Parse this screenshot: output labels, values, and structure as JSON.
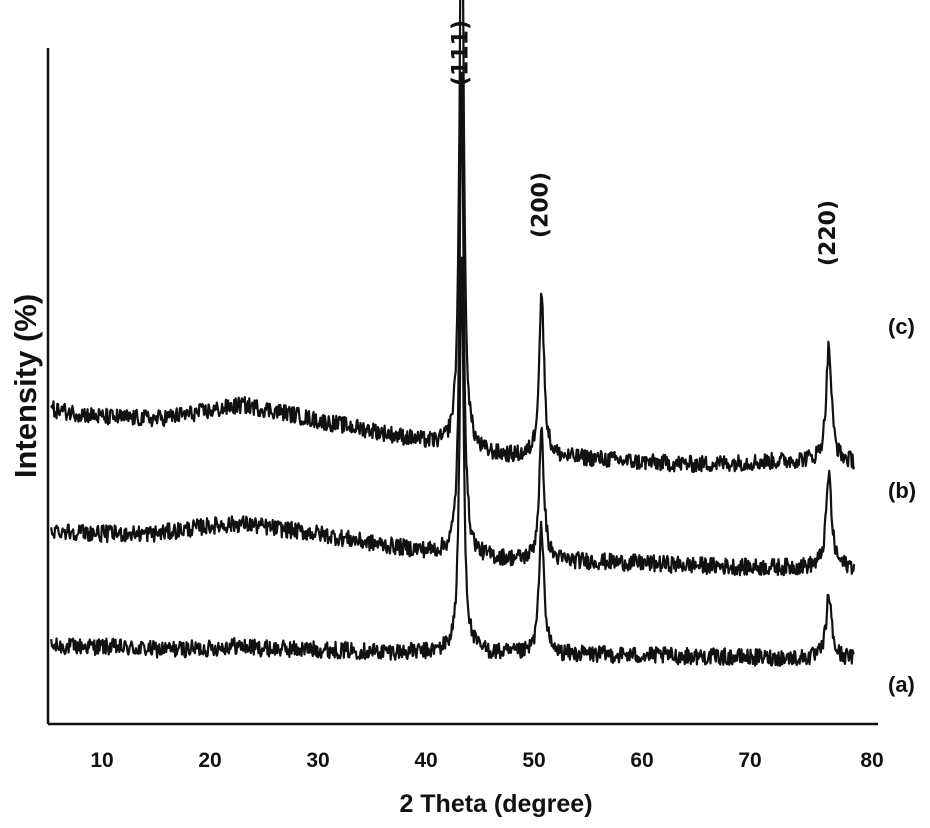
{
  "chart_data": {
    "type": "line",
    "title": "",
    "xlabel": "2 Theta (degree)",
    "ylabel": "Intensity (%)",
    "xlim": [
      5,
      80
    ],
    "xticks": [
      10,
      20,
      30,
      40,
      50,
      60,
      70,
      80
    ],
    "y_ticks_shown": false,
    "grid": false,
    "peak_annotations": [
      {
        "label": "(111)",
        "x": 43.3
      },
      {
        "label": "(200)",
        "x": 50.7
      },
      {
        "label": "(220)",
        "x": 77.3
      }
    ],
    "series": [
      {
        "name": "(a)",
        "baseline": [
          [
            5,
            0.27
          ],
          [
            10,
            0.27
          ],
          [
            15,
            0.255
          ],
          [
            20,
            0.26
          ],
          [
            22,
            0.275
          ],
          [
            25,
            0.26
          ],
          [
            30,
            0.255
          ],
          [
            35,
            0.245
          ],
          [
            40,
            0.24
          ],
          [
            42,
            0.245
          ],
          [
            44,
            0.245
          ],
          [
            46,
            0.235
          ],
          [
            48,
            0.23
          ],
          [
            50,
            0.225
          ],
          [
            55,
            0.23
          ],
          [
            60,
            0.225
          ],
          [
            65,
            0.22
          ],
          [
            70,
            0.215
          ],
          [
            75,
            0.21
          ],
          [
            80,
            0.21
          ]
        ],
        "peaks": [
          {
            "x": 43.3,
            "height": 2.0
          },
          {
            "x": 50.7,
            "height": 0.65
          },
          {
            "x": 77.3,
            "height": 0.32
          }
        ]
      },
      {
        "name": "(b)",
        "baseline": [
          [
            5,
            0.86
          ],
          [
            10,
            0.84
          ],
          [
            15,
            0.84
          ],
          [
            20,
            0.88
          ],
          [
            23,
            0.89
          ],
          [
            27,
            0.86
          ],
          [
            30,
            0.84
          ],
          [
            35,
            0.79
          ],
          [
            40,
            0.75
          ],
          [
            45,
            0.72
          ],
          [
            50,
            0.7
          ],
          [
            55,
            0.7
          ],
          [
            60,
            0.69
          ],
          [
            65,
            0.68
          ],
          [
            70,
            0.67
          ],
          [
            75,
            0.67
          ],
          [
            80,
            0.67
          ]
        ],
        "peaks": [
          {
            "x": 43.3,
            "height": 2.42
          },
          {
            "x": 50.7,
            "height": 0.64
          },
          {
            "x": 77.3,
            "height": 0.47
          }
        ]
      },
      {
        "name": "(c)",
        "baseline": [
          [
            5,
            1.47
          ],
          [
            10,
            1.43
          ],
          [
            15,
            1.42
          ],
          [
            20,
            1.46
          ],
          [
            23,
            1.49
          ],
          [
            27,
            1.45
          ],
          [
            30,
            1.41
          ],
          [
            35,
            1.36
          ],
          [
            40,
            1.3
          ],
          [
            45,
            1.24
          ],
          [
            50,
            1.22
          ],
          [
            55,
            1.22
          ],
          [
            60,
            1.2
          ],
          [
            65,
            1.19
          ],
          [
            70,
            1.2
          ],
          [
            75,
            1.21
          ],
          [
            80,
            1.2
          ]
        ],
        "peaks": [
          {
            "x": 43.3,
            "height": 3.1
          },
          {
            "x": 50.7,
            "height": 0.83
          },
          {
            "x": 77.3,
            "height": 0.58
          }
        ]
      }
    ]
  }
}
